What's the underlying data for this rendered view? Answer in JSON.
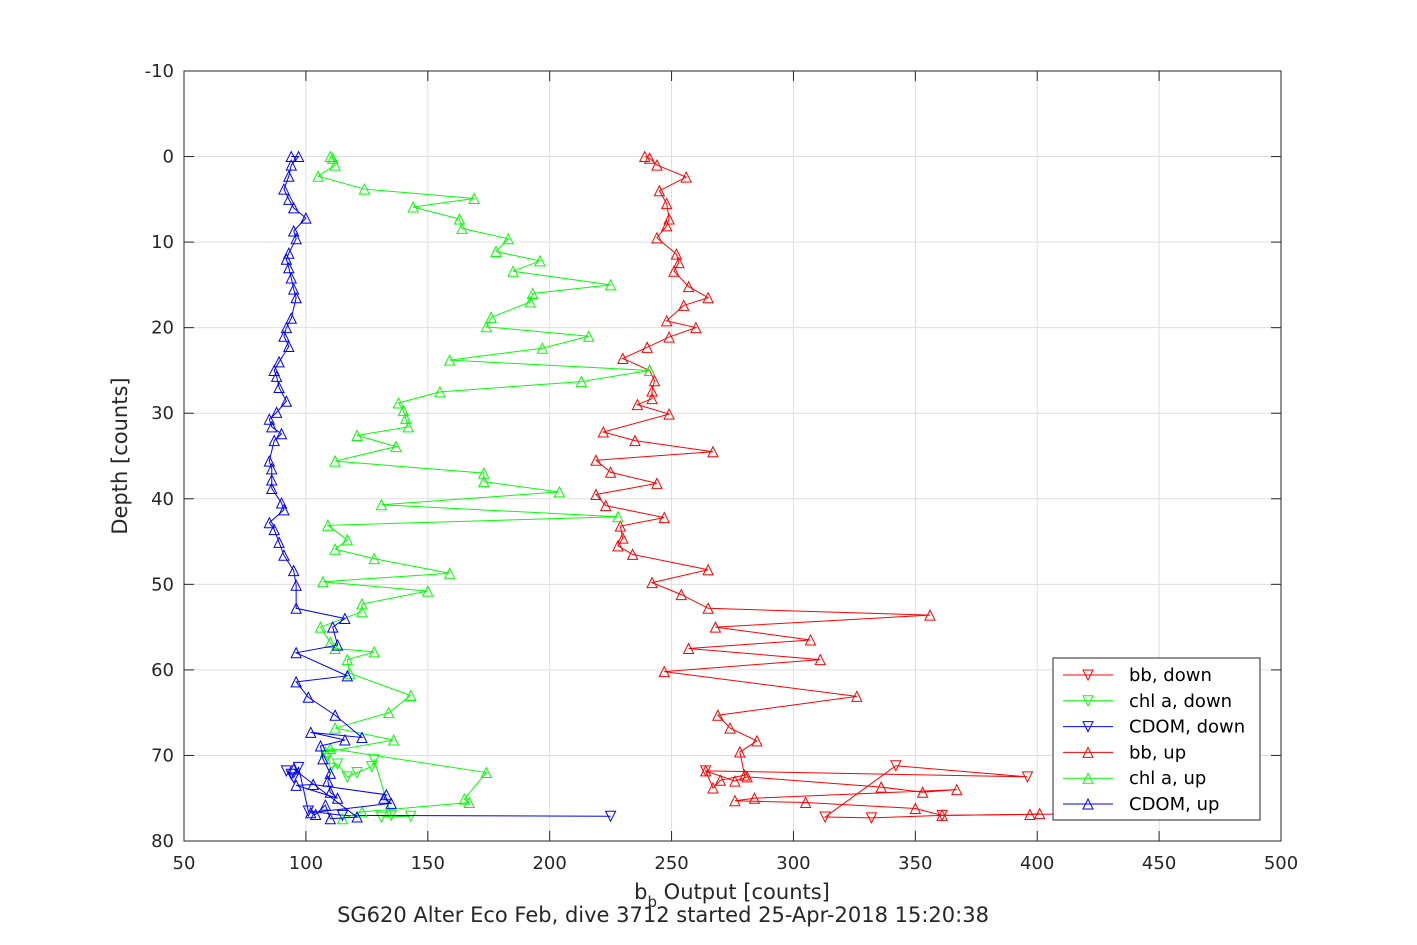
{
  "chart_data": {
    "type": "line",
    "xlabel_main": "b",
    "xlabel_sub": "b",
    "xlabel_rest": " Output [counts]",
    "ylabel": "Depth [counts]",
    "subtitle": "SG620 Alter Eco Feb, dive 3712 started 25-Apr-2018 15:20:38",
    "xlim": [
      50,
      500
    ],
    "ylim": [
      -10,
      80
    ],
    "y_reversed": true,
    "xticks": [
      50,
      100,
      150,
      200,
      250,
      300,
      350,
      400,
      450,
      500
    ],
    "yticks": [
      -10,
      0,
      10,
      20,
      30,
      40,
      50,
      60,
      70,
      80
    ],
    "grid": true,
    "legend_position": "bottom-right",
    "series": [
      {
        "name": "bb, down",
        "color": "#ff0000",
        "marker": "triangle-down",
        "x": [
          264,
          396,
          342,
          313,
          332,
          361,
          426
        ],
        "y": [
          71.8,
          72.5,
          71.2,
          77.2,
          77.3,
          77.0,
          76.8
        ]
      },
      {
        "name": "chl a, down",
        "color": "#00ff00",
        "marker": "triangle-down",
        "x": [
          109,
          110,
          113,
          117,
          121,
          127,
          128,
          135,
          131,
          143
        ],
        "y": [
          70,
          71.5,
          71,
          72.5,
          72,
          71.3,
          70.5,
          77,
          77.2,
          77.1
        ]
      },
      {
        "name": "CDOM, down",
        "color": "#0000ff",
        "marker": "triangle-down",
        "x": [
          92,
          94,
          95,
          97,
          101,
          115,
          225
        ],
        "y": [
          71.8,
          72.2,
          72.6,
          71.4,
          76.5,
          77.0,
          77.1
        ]
      },
      {
        "name": "bb, up",
        "color": "#ff0000",
        "marker": "triangle-up",
        "x": [
          239,
          241,
          244,
          256,
          245,
          248,
          249,
          248,
          244,
          252,
          253,
          251,
          257,
          265,
          255,
          248,
          260,
          249,
          240,
          230,
          241,
          243,
          242,
          242,
          236,
          249,
          222,
          235,
          267,
          219,
          225,
          244,
          219,
          223,
          247,
          229,
          230,
          228,
          234,
          265,
          242,
          254,
          265,
          356,
          268,
          307,
          257,
          311,
          247,
          326,
          269,
          274,
          285,
          278,
          280,
          270,
          267,
          264,
          276,
          281,
          336,
          353,
          367,
          284,
          276,
          305,
          350,
          361,
          397,
          401
        ],
        "y": [
          0,
          0.2,
          1,
          2.4,
          4,
          5.5,
          7.3,
          8.1,
          9.5,
          11.4,
          12.4,
          13.4,
          15.2,
          16.5,
          17.4,
          19.2,
          20,
          21.1,
          22.3,
          23.6,
          25,
          26.2,
          27.4,
          28.3,
          29,
          30.1,
          32.2,
          33.2,
          34.5,
          35.5,
          36.9,
          38.2,
          39.5,
          40.8,
          42.2,
          43.2,
          44.6,
          45.5,
          46.5,
          48.3,
          49.8,
          51.2,
          52.8,
          53.6,
          55,
          56.5,
          57.5,
          58.8,
          60.2,
          63.1,
          65.3,
          66.8,
          68.3,
          69.6,
          72.3,
          72.9,
          73.8,
          71.8,
          73,
          72.5,
          73.7,
          74.3,
          74,
          75,
          75.3,
          75.5,
          76.2,
          77,
          76.9,
          76.8
        ]
      },
      {
        "name": "chl a, up",
        "color": "#00ff00",
        "marker": "triangle-up",
        "x": [
          110,
          111,
          112,
          105,
          124,
          169,
          144,
          163,
          164,
          183,
          178,
          196,
          185,
          225,
          193,
          192,
          176,
          174,
          216,
          197,
          159,
          241,
          213,
          155,
          138,
          140,
          141,
          142,
          121,
          137,
          112,
          173,
          173,
          204,
          131,
          228,
          109,
          117,
          112,
          128,
          159,
          107,
          150,
          123,
          123,
          106,
          110,
          112,
          128,
          117,
          118,
          143,
          134,
          112,
          136,
          108,
          110,
          174,
          165,
          167,
          123,
          115
        ],
        "y": [
          0,
          0.2,
          1,
          2.3,
          3.8,
          4.9,
          5.9,
          7.3,
          8.4,
          9.6,
          11.1,
          12.2,
          13.4,
          15,
          16,
          17,
          18.8,
          19.9,
          21,
          22.4,
          23.8,
          25,
          26.3,
          27.5,
          28.8,
          29.7,
          30.6,
          31.6,
          32.6,
          33.9,
          35.6,
          37,
          38,
          39.2,
          40.7,
          42.1,
          43.1,
          44.8,
          45.9,
          47,
          48.7,
          49.7,
          50.8,
          52.3,
          53.2,
          55,
          56.8,
          57.5,
          57.9,
          58.8,
          60.4,
          63,
          65,
          66.8,
          68.2,
          69.6,
          69.2,
          72,
          75.1,
          75.5,
          76.6,
          77.4
        ]
      },
      {
        "name": "CDOM, up",
        "color": "#0000ff",
        "marker": "triangle-up",
        "x": [
          94,
          97,
          94,
          93,
          91,
          93,
          95,
          100,
          95,
          96,
          93,
          92,
          93,
          94,
          95,
          96,
          94,
          92,
          91,
          93,
          89,
          87,
          88,
          89,
          92,
          88,
          85,
          86,
          90,
          87,
          85,
          86,
          86,
          86,
          90,
          91,
          85,
          87,
          89,
          91,
          95,
          96,
          96,
          116,
          111,
          113,
          96,
          117,
          96,
          101,
          112,
          123,
          102,
          116,
          106,
          107,
          110,
          109,
          110,
          113,
          96,
          103,
          133,
          132,
          135,
          102,
          104,
          108,
          110,
          121,
          95
        ],
        "y": [
          0,
          0,
          1,
          2.3,
          3.8,
          5,
          6,
          7.2,
          8.7,
          9.6,
          11.3,
          12,
          13,
          14.2,
          15.5,
          16.5,
          18.9,
          20,
          21,
          22.2,
          24,
          25,
          25.7,
          27,
          28.6,
          29.9,
          30.7,
          31.6,
          32.4,
          33.2,
          35.6,
          36.5,
          37.8,
          38.8,
          40.5,
          41.3,
          42.8,
          43.6,
          45.1,
          46.6,
          48.4,
          50.1,
          52.8,
          54,
          55,
          57.1,
          58,
          60.7,
          61.4,
          63.2,
          65.3,
          67.9,
          67.3,
          68.2,
          68.9,
          70.4,
          72.1,
          73,
          74.3,
          75,
          73.5,
          73.4,
          74.6,
          75,
          75.6,
          76.7,
          76.9,
          75.8,
          77.4,
          77.2,
          71.6
        ]
      }
    ]
  }
}
